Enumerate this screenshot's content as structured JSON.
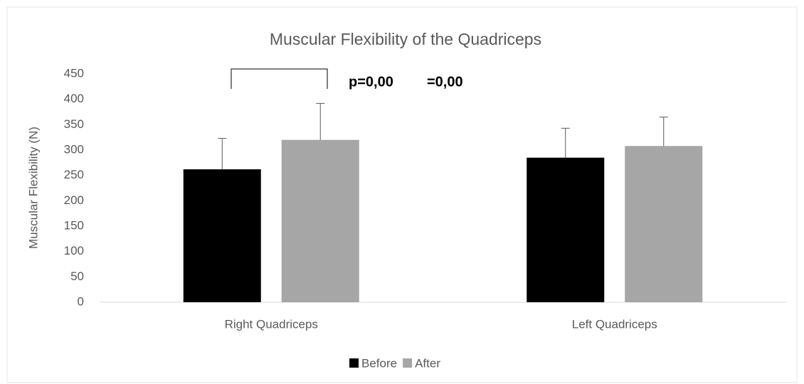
{
  "chart_data": {
    "type": "bar",
    "title": "Muscular Flexibility of the Quadriceps",
    "y_label": "Muscular Flexibility (N)",
    "categories": [
      "Right Quadriceps",
      "Left Quadriceps"
    ],
    "series": [
      {
        "name": "Before",
        "color": "#000000",
        "values": [
          262,
          285
        ],
        "errors": [
          61,
          58
        ]
      },
      {
        "name": "After",
        "color": "#a6a6a6",
        "values": [
          320,
          308
        ],
        "errors": [
          72,
          57
        ]
      }
    ],
    "annotations": [
      "p=0,00",
      "=0,00"
    ],
    "ylim": [
      0,
      450
    ],
    "yticks": [
      0,
      50,
      100,
      150,
      200,
      250,
      300,
      350,
      400,
      450
    ],
    "legend": "bottom"
  }
}
